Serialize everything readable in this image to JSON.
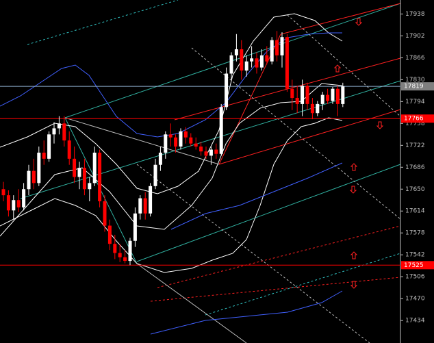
{
  "chart_data": {
    "type": "candlestick",
    "ylim": [
      17397,
      17961
    ],
    "yticks": [
      17434,
      17470,
      17506,
      17542,
      17578,
      17614,
      17650,
      17686,
      17722,
      17758,
      17794,
      17830,
      17866,
      17902,
      17938
    ],
    "up_color": "#ffffff",
    "down_color": "#ff0000",
    "candles": {
      "open": [
        17650,
        17640,
        17615,
        17632,
        17620,
        17650,
        17680,
        17660,
        17710,
        17700,
        17740,
        17750,
        17758,
        17730,
        17700,
        17670,
        17685,
        17650,
        17660,
        17710,
        17630,
        17590,
        17560,
        17545,
        17538,
        17532,
        17565,
        17610,
        17635,
        17610,
        17655,
        17690,
        17710,
        17740,
        17735,
        17720,
        17745,
        17735,
        17725,
        17720,
        17712,
        17705,
        17715,
        17708,
        17785,
        17840,
        17870,
        17880,
        17845,
        17860,
        17865,
        17850,
        17870,
        17860,
        17895,
        17870,
        17900,
        17815,
        17800,
        17790,
        17820,
        17790,
        17775,
        17790,
        17805,
        17795,
        17815,
        17790
      ],
      "high": [
        17662,
        17648,
        17640,
        17650,
        17660,
        17690,
        17700,
        17720,
        17730,
        17745,
        17760,
        17770,
        17770,
        17745,
        17720,
        17695,
        17700,
        17670,
        17720,
        17715,
        17640,
        17600,
        17575,
        17560,
        17550,
        17570,
        17620,
        17640,
        17645,
        17660,
        17700,
        17720,
        17745,
        17758,
        17740,
        17750,
        17752,
        17742,
        17735,
        17728,
        17720,
        17720,
        17725,
        17790,
        17850,
        17875,
        17905,
        17895,
        17870,
        17885,
        17875,
        17880,
        17885,
        17900,
        17910,
        17908,
        17905,
        17830,
        17820,
        17830,
        17825,
        17800,
        17795,
        17810,
        17815,
        17818,
        17820,
        17825
      ],
      "low": [
        17630,
        17605,
        17600,
        17612,
        17615,
        17640,
        17650,
        17655,
        17690,
        17695,
        17725,
        17740,
        17720,
        17690,
        17660,
        17650,
        17640,
        17630,
        17655,
        17620,
        17580,
        17550,
        17535,
        17530,
        17528,
        17525,
        17555,
        17600,
        17600,
        17605,
        17650,
        17680,
        17700,
        17720,
        17710,
        17715,
        17725,
        17720,
        17715,
        17705,
        17700,
        17690,
        17700,
        17705,
        17780,
        17830,
        17860,
        17830,
        17835,
        17850,
        17840,
        17845,
        17855,
        17855,
        17860,
        17850,
        17810,
        17780,
        17775,
        17770,
        17780,
        17765,
        17770,
        17780,
        17790,
        17790,
        17770,
        17785
      ],
      "close": [
        17640,
        17615,
        17632,
        17620,
        17650,
        17680,
        17660,
        17710,
        17700,
        17740,
        17750,
        17758,
        17730,
        17700,
        17670,
        17685,
        17650,
        17660,
        17710,
        17630,
        17590,
        17560,
        17545,
        17538,
        17532,
        17565,
        17610,
        17635,
        17610,
        17655,
        17690,
        17710,
        17740,
        17735,
        17720,
        17745,
        17735,
        17725,
        17720,
        17712,
        17705,
        17715,
        17708,
        17785,
        17840,
        17870,
        17880,
        17845,
        17860,
        17865,
        17850,
        17870,
        17860,
        17895,
        17870,
        17900,
        17815,
        17800,
        17790,
        17820,
        17790,
        17775,
        17790,
        17805,
        17795,
        17815,
        17790,
        17819
      ]
    },
    "hlines": [
      {
        "value": 17819,
        "color": "#8fb0d0",
        "label_color": "#7f7f7f"
      },
      {
        "value": 17766,
        "color": "#ff0000",
        "label_color": "#ff0000"
      },
      {
        "value": 17525,
        "color": "#ff0000",
        "label_color": "#ff0000"
      }
    ]
  }
}
